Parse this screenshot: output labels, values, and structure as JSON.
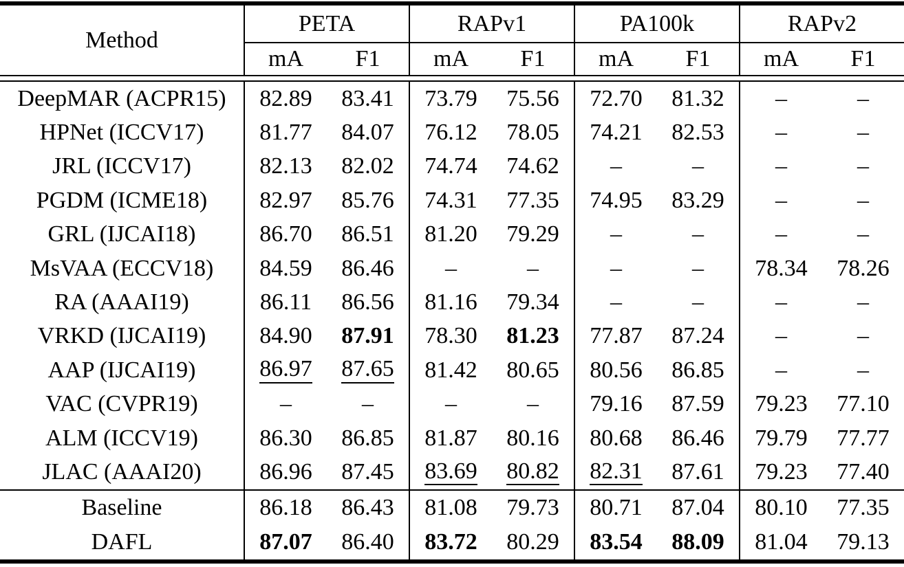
{
  "table": {
    "header": {
      "method_label": "Method",
      "groups": [
        {
          "label": "PETA",
          "metrics": [
            "mA",
            "F1"
          ]
        },
        {
          "label": "RAPv1",
          "metrics": [
            "mA",
            "F1"
          ]
        },
        {
          "label": "PA100k",
          "metrics": [
            "mA",
            "F1"
          ]
        },
        {
          "label": "RAPv2",
          "metrics": [
            "mA",
            "F1"
          ]
        }
      ]
    },
    "body_rows": [
      {
        "method": "DeepMAR (ACPR15)",
        "cells": [
          {
            "text": "82.89"
          },
          {
            "text": "83.41"
          },
          {
            "text": "73.79"
          },
          {
            "text": "75.56"
          },
          {
            "text": "72.70"
          },
          {
            "text": "81.32"
          },
          {
            "text": "–"
          },
          {
            "text": "–"
          }
        ]
      },
      {
        "method": "HPNet (ICCV17)",
        "cells": [
          {
            "text": "81.77"
          },
          {
            "text": "84.07"
          },
          {
            "text": "76.12"
          },
          {
            "text": "78.05"
          },
          {
            "text": "74.21"
          },
          {
            "text": "82.53"
          },
          {
            "text": "–"
          },
          {
            "text": "–"
          }
        ]
      },
      {
        "method": "JRL (ICCV17)",
        "cells": [
          {
            "text": "82.13"
          },
          {
            "text": "82.02"
          },
          {
            "text": "74.74"
          },
          {
            "text": "74.62"
          },
          {
            "text": "–"
          },
          {
            "text": "–"
          },
          {
            "text": "–"
          },
          {
            "text": "–"
          }
        ]
      },
      {
        "method": "PGDM (ICME18)",
        "cells": [
          {
            "text": "82.97"
          },
          {
            "text": "85.76"
          },
          {
            "text": "74.31"
          },
          {
            "text": "77.35"
          },
          {
            "text": "74.95"
          },
          {
            "text": "83.29"
          },
          {
            "text": "–"
          },
          {
            "text": "–"
          }
        ]
      },
      {
        "method": "GRL (IJCAI18)",
        "cells": [
          {
            "text": "86.70"
          },
          {
            "text": "86.51"
          },
          {
            "text": "81.20"
          },
          {
            "text": "79.29"
          },
          {
            "text": "–"
          },
          {
            "text": "–"
          },
          {
            "text": "–"
          },
          {
            "text": "–"
          }
        ]
      },
      {
        "method": "MsVAA (ECCV18)",
        "cells": [
          {
            "text": "84.59"
          },
          {
            "text": "86.46"
          },
          {
            "text": "–"
          },
          {
            "text": "–"
          },
          {
            "text": "–"
          },
          {
            "text": "–"
          },
          {
            "text": "78.34"
          },
          {
            "text": "78.26"
          }
        ]
      },
      {
        "method": "RA (AAAI19)",
        "cells": [
          {
            "text": "86.11"
          },
          {
            "text": "86.56"
          },
          {
            "text": "81.16"
          },
          {
            "text": "79.34"
          },
          {
            "text": "–"
          },
          {
            "text": "–"
          },
          {
            "text": "–"
          },
          {
            "text": "–"
          }
        ]
      },
      {
        "method": "VRKD (IJCAI19)",
        "cells": [
          {
            "text": "84.90"
          },
          {
            "text": "87.91",
            "style": "bold"
          },
          {
            "text": "78.30"
          },
          {
            "text": "81.23",
            "style": "bold"
          },
          {
            "text": "77.87"
          },
          {
            "text": "87.24"
          },
          {
            "text": "–"
          },
          {
            "text": "–"
          }
        ]
      },
      {
        "method": "AAP (IJCAI19)",
        "cells": [
          {
            "text": "86.97",
            "style": "underline"
          },
          {
            "text": "87.65",
            "style": "underline"
          },
          {
            "text": "81.42"
          },
          {
            "text": "80.65"
          },
          {
            "text": "80.56"
          },
          {
            "text": "86.85"
          },
          {
            "text": "–"
          },
          {
            "text": "–"
          }
        ]
      },
      {
        "method": "VAC (CVPR19)",
        "cells": [
          {
            "text": "–"
          },
          {
            "text": "–"
          },
          {
            "text": "–"
          },
          {
            "text": "–"
          },
          {
            "text": "79.16"
          },
          {
            "text": "87.59"
          },
          {
            "text": "79.23"
          },
          {
            "text": "77.10"
          }
        ]
      },
      {
        "method": "ALM (ICCV19)",
        "cells": [
          {
            "text": "86.30"
          },
          {
            "text": "86.85"
          },
          {
            "text": "81.87"
          },
          {
            "text": "80.16"
          },
          {
            "text": "80.68"
          },
          {
            "text": "86.46"
          },
          {
            "text": "79.79"
          },
          {
            "text": "77.77"
          }
        ]
      },
      {
        "method": "JLAC (AAAI20)",
        "cells": [
          {
            "text": "86.96"
          },
          {
            "text": "87.45"
          },
          {
            "text": "83.69",
            "style": "underline"
          },
          {
            "text": "80.82",
            "style": "underline"
          },
          {
            "text": "82.31",
            "style": "underline"
          },
          {
            "text": "87.61"
          },
          {
            "text": "79.23"
          },
          {
            "text": "77.40"
          }
        ]
      }
    ],
    "footer_rows": [
      {
        "method": "Baseline",
        "cells": [
          {
            "text": "86.18"
          },
          {
            "text": "86.43"
          },
          {
            "text": "81.08"
          },
          {
            "text": "79.73"
          },
          {
            "text": "80.71"
          },
          {
            "text": "87.04"
          },
          {
            "text": "80.10"
          },
          {
            "text": "77.35"
          }
        ]
      },
      {
        "method": "DAFL",
        "cells": [
          {
            "text": "87.07",
            "style": "bold"
          },
          {
            "text": "86.40"
          },
          {
            "text": "83.72",
            "style": "bold"
          },
          {
            "text": "80.29"
          },
          {
            "text": "83.54",
            "style": "bold"
          },
          {
            "text": "88.09",
            "style": "bold"
          },
          {
            "text": "81.04"
          },
          {
            "text": "79.13"
          }
        ]
      }
    ]
  }
}
